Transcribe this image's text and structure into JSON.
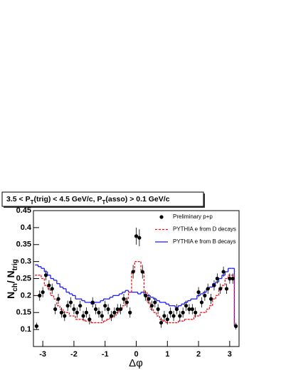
{
  "chart_data": {
    "type": "scatter",
    "title_parts": [
      "3.5 < P",
      "T",
      "(trig) < 4.5 GeV/c, P",
      "T",
      "(asso) > 0.1 GeV/c"
    ],
    "y_label_parts": [
      "N",
      "ch",
      "/ N",
      "trig"
    ],
    "x_label": "Δφ",
    "x": [
      -3.2,
      -3.1,
      -3.0,
      -2.9,
      -2.8,
      -2.7,
      -2.6,
      -2.5,
      -2.4,
      -2.3,
      -2.2,
      -2.1,
      -2.0,
      -1.9,
      -1.8,
      -1.7,
      -1.6,
      -1.5,
      -1.4,
      -1.3,
      -1.2,
      -1.1,
      -1.0,
      -0.9,
      -0.8,
      -0.7,
      -0.6,
      -0.5,
      -0.4,
      -0.3,
      -0.2,
      -0.1,
      0.0,
      0.1,
      0.2,
      0.3,
      0.4,
      0.5,
      0.6,
      0.7,
      0.8,
      0.9,
      1.0,
      1.1,
      1.2,
      1.3,
      1.4,
      1.5,
      1.6,
      1.7,
      1.8,
      1.9,
      2.0,
      2.1,
      2.2,
      2.3,
      2.4,
      2.5,
      2.6,
      2.7,
      2.8,
      2.9,
      3.0,
      3.1,
      3.2
    ],
    "series": [
      {
        "name": "Preliminary p+p",
        "color": "#000000",
        "kind": "points",
        "values": [
          0.11,
          0.2,
          0.21,
          0.26,
          0.23,
          0.22,
          0.16,
          0.19,
          0.15,
          0.14,
          0.17,
          0.18,
          0.16,
          0.15,
          0.17,
          0.14,
          0.15,
          0.13,
          0.18,
          0.16,
          0.15,
          0.14,
          0.17,
          0.16,
          0.14,
          0.15,
          0.16,
          0.16,
          0.19,
          0.18,
          0.15,
          0.27,
          0.375,
          0.37,
          0.27,
          0.2,
          0.19,
          0.17,
          0.18,
          0.16,
          0.12,
          0.14,
          0.13,
          0.15,
          0.14,
          0.16,
          0.14,
          0.15,
          0.17,
          0.16,
          0.16,
          0.15,
          0.21,
          0.18,
          0.2,
          0.22,
          0.19,
          0.23,
          0.25,
          0.22,
          0.27,
          0.22,
          0.25,
          0.25,
          0.11
        ],
        "errors": [
          0.01,
          0.015,
          0.015,
          0.015,
          0.015,
          0.015,
          0.015,
          0.015,
          0.015,
          0.015,
          0.015,
          0.015,
          0.015,
          0.015,
          0.015,
          0.015,
          0.015,
          0.015,
          0.015,
          0.015,
          0.015,
          0.015,
          0.015,
          0.015,
          0.015,
          0.015,
          0.015,
          0.015,
          0.015,
          0.015,
          0.015,
          0.02,
          0.025,
          0.025,
          0.02,
          0.015,
          0.015,
          0.015,
          0.015,
          0.015,
          0.015,
          0.015,
          0.015,
          0.015,
          0.015,
          0.015,
          0.015,
          0.015,
          0.015,
          0.015,
          0.015,
          0.015,
          0.015,
          0.015,
          0.015,
          0.015,
          0.015,
          0.015,
          0.015,
          0.015,
          0.015,
          0.015,
          0.015,
          0.015,
          0.01
        ]
      },
      {
        "name": "PYTHIA e from D decays",
        "color": "#e8141e",
        "kind": "dashed-step",
        "values": [
          0.26,
          0.26,
          0.25,
          0.23,
          0.22,
          0.2,
          0.19,
          0.17,
          0.16,
          0.15,
          0.15,
          0.14,
          0.14,
          0.13,
          0.13,
          0.13,
          0.125,
          0.125,
          0.12,
          0.12,
          0.12,
          0.12,
          0.125,
          0.13,
          0.135,
          0.14,
          0.15,
          0.16,
          0.17,
          0.19,
          0.21,
          0.27,
          0.3,
          0.3,
          0.27,
          0.21,
          0.18,
          0.16,
          0.15,
          0.14,
          0.13,
          0.125,
          0.12,
          0.12,
          0.12,
          0.12,
          0.125,
          0.125,
          0.13,
          0.13,
          0.13,
          0.14,
          0.14,
          0.15,
          0.15,
          0.16,
          0.17,
          0.19,
          0.2,
          0.22,
          0.23,
          0.25,
          0.26,
          0.26,
          0.11
        ]
      },
      {
        "name": "PYTHIA e from B decays",
        "color": "#1a1aff",
        "kind": "step",
        "values": [
          0.29,
          0.285,
          0.28,
          0.27,
          0.26,
          0.25,
          0.245,
          0.235,
          0.225,
          0.22,
          0.21,
          0.205,
          0.2,
          0.19,
          0.19,
          0.185,
          0.18,
          0.18,
          0.175,
          0.18,
          0.18,
          0.185,
          0.19,
          0.19,
          0.195,
          0.2,
          0.2,
          0.205,
          0.21,
          0.215,
          0.21,
          0.21,
          0.21,
          0.205,
          0.21,
          0.2,
          0.2,
          0.195,
          0.19,
          0.185,
          0.18,
          0.18,
          0.175,
          0.17,
          0.17,
          0.165,
          0.17,
          0.175,
          0.18,
          0.185,
          0.19,
          0.19,
          0.2,
          0.205,
          0.21,
          0.22,
          0.225,
          0.235,
          0.24,
          0.25,
          0.26,
          0.27,
          0.28,
          0.28,
          0.11
        ]
      }
    ],
    "xlim": [
      -3.3,
      3.3
    ],
    "ylim": [
      0.05,
      0.45
    ],
    "xticks": [
      -3,
      -2,
      -1,
      0,
      1,
      2,
      3
    ],
    "yticks": [
      0.1,
      0.15,
      0.2,
      0.25,
      0.3,
      0.35,
      0.4,
      0.45
    ],
    "legend": "upper-right"
  }
}
